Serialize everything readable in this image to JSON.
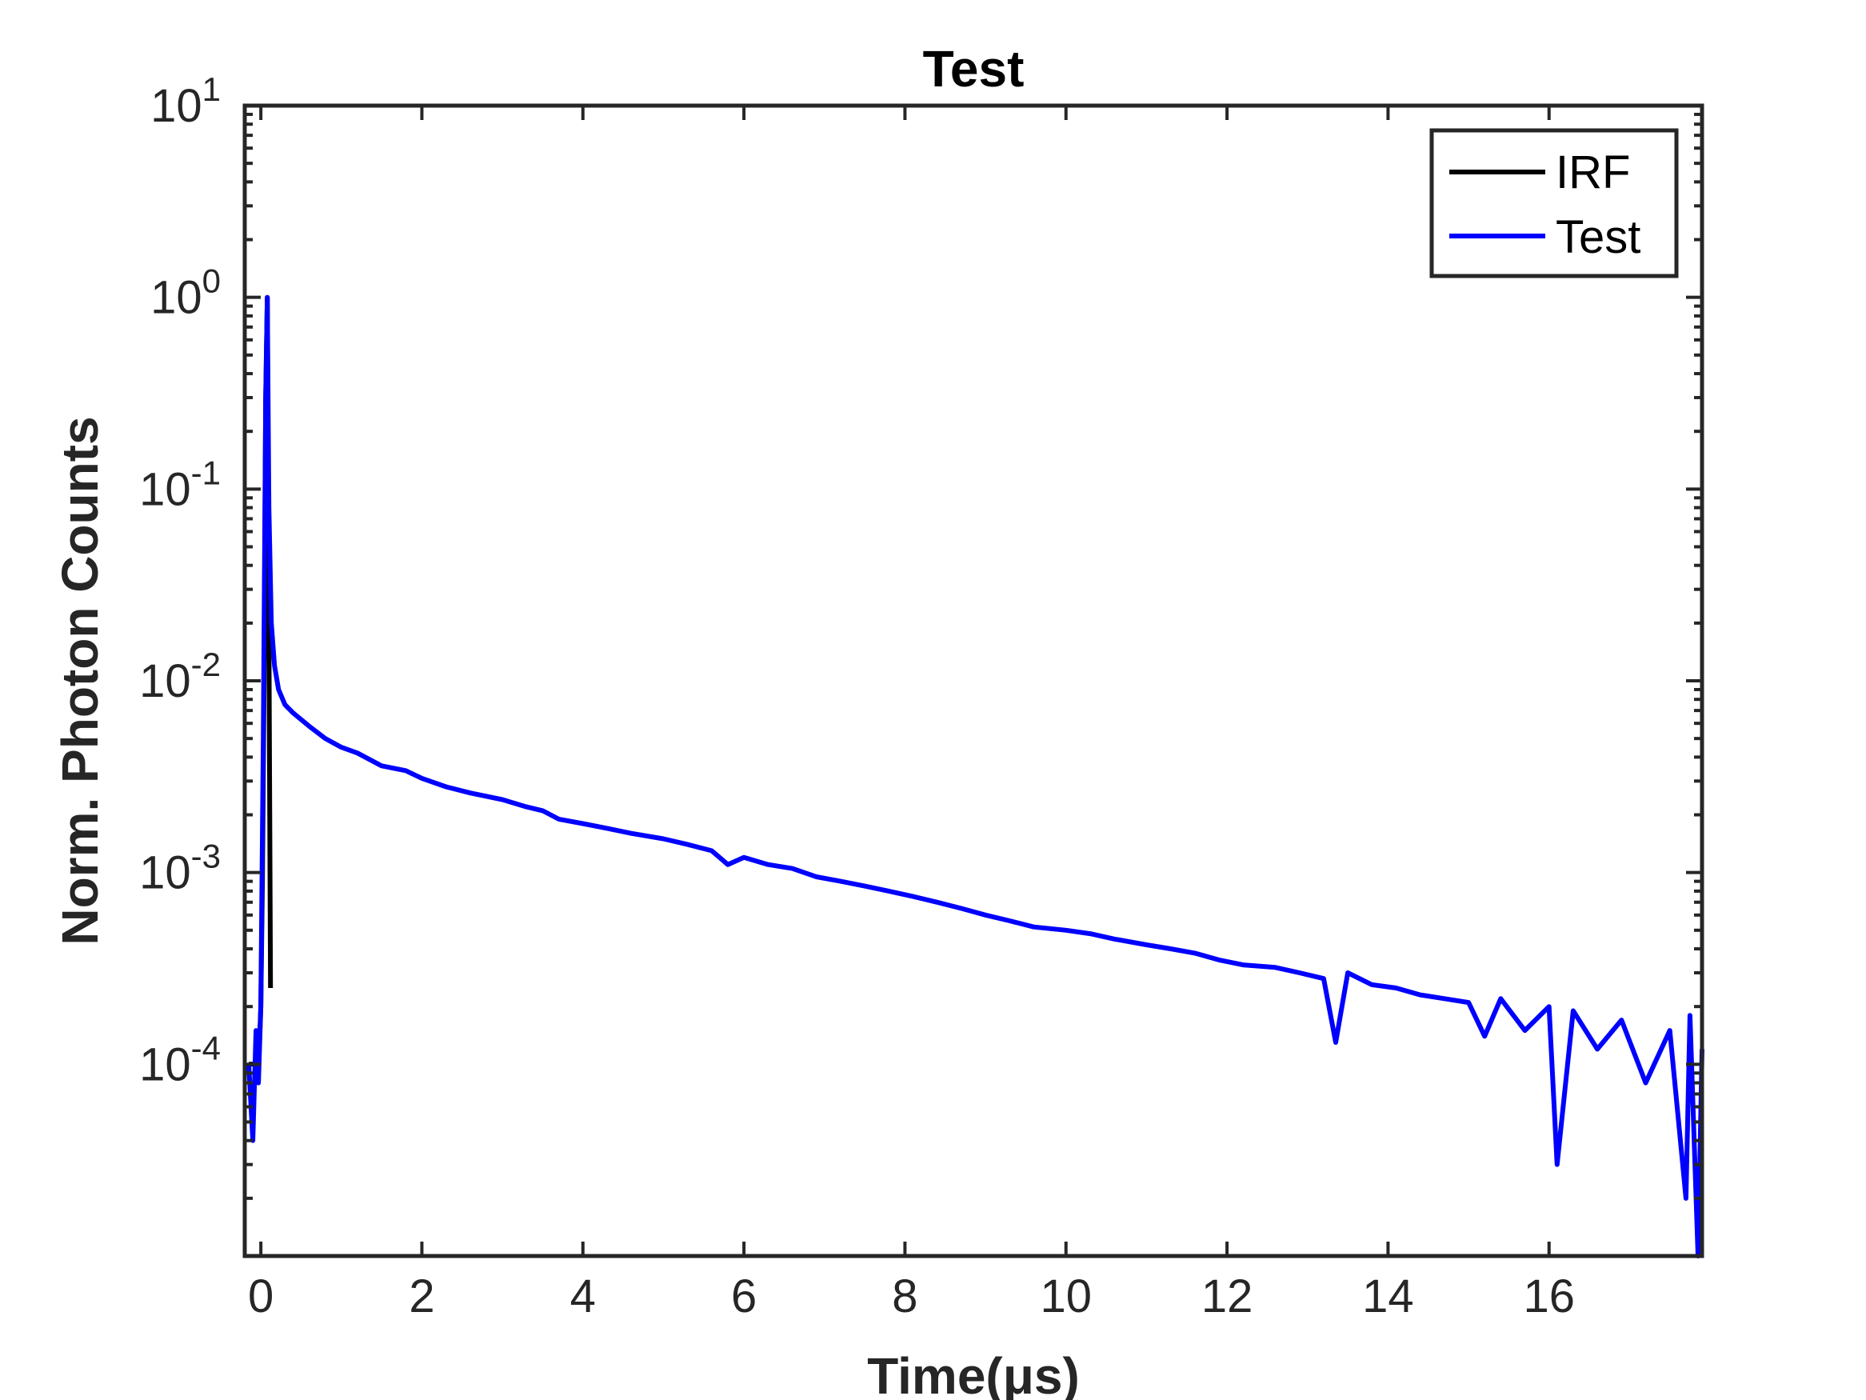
{
  "chart_data": {
    "type": "line",
    "title": "Test",
    "xlabel": "Time(μs)",
    "ylabel": "Norm. Photon Counts",
    "xlim": [
      -0.2,
      17.9
    ],
    "ylim": [
      1e-05,
      10
    ],
    "yscale": "log",
    "grid": false,
    "legend_position": "top-right",
    "x_ticks": [
      0,
      2,
      4,
      6,
      8,
      10,
      12,
      14,
      16
    ],
    "x_tick_labels": [
      "0",
      "2",
      "4",
      "6",
      "8",
      "10",
      "12",
      "14",
      "16"
    ],
    "y_ticks": [
      {
        "value": 10,
        "base": "10",
        "exp": "1"
      },
      {
        "value": 1,
        "base": "10",
        "exp": "0"
      },
      {
        "value": 0.1,
        "base": "10",
        "exp": "-1"
      },
      {
        "value": 0.01,
        "base": "10",
        "exp": "-2"
      },
      {
        "value": 0.001,
        "base": "10",
        "exp": "-3"
      },
      {
        "value": 0.0001,
        "base": "10",
        "exp": "-4"
      }
    ],
    "series": [
      {
        "name": "IRF",
        "color": "#000000",
        "x": [
          -0.15,
          -0.08,
          -0.02,
          0.0,
          0.02,
          0.04,
          0.06,
          0.08,
          0.1,
          0.12
        ],
        "y": [
          0.0001,
          0.0001,
          0.00012,
          0.0002,
          0.0009,
          0.01,
          0.3,
          1.0,
          0.02,
          0.00025
        ]
      },
      {
        "name": "Test",
        "color": "#0000ff",
        "x": [
          -0.15,
          -0.1,
          -0.06,
          -0.03,
          0.0,
          0.03,
          0.06,
          0.08,
          0.1,
          0.13,
          0.17,
          0.22,
          0.3,
          0.4,
          0.6,
          0.8,
          1.0,
          1.2,
          1.5,
          1.8,
          2.0,
          2.3,
          2.6,
          3.0,
          3.3,
          3.5,
          3.7,
          4.0,
          4.3,
          4.6,
          5.0,
          5.3,
          5.6,
          5.8,
          6.0,
          6.3,
          6.6,
          6.9,
          7.2,
          7.5,
          7.8,
          8.1,
          8.4,
          8.7,
          9.0,
          9.3,
          9.6,
          10.0,
          10.3,
          10.6,
          11.0,
          11.3,
          11.6,
          11.9,
          12.2,
          12.6,
          12.9,
          13.2,
          13.35,
          13.5,
          13.8,
          14.1,
          14.4,
          14.7,
          15.0,
          15.2,
          15.4,
          15.7,
          16.0,
          16.1,
          16.3,
          16.6,
          16.9,
          17.2,
          17.5,
          17.7,
          17.75,
          17.85,
          17.9
        ],
        "y": [
          0.0001,
          4e-05,
          0.00015,
          8e-05,
          0.0002,
          0.005,
          0.3,
          1.0,
          0.08,
          0.02,
          0.012,
          0.009,
          0.0075,
          0.0068,
          0.0058,
          0.005,
          0.0045,
          0.0042,
          0.0036,
          0.0034,
          0.0031,
          0.0028,
          0.0026,
          0.0024,
          0.0022,
          0.0021,
          0.0019,
          0.0018,
          0.0017,
          0.0016,
          0.0015,
          0.0014,
          0.0013,
          0.0011,
          0.0012,
          0.0011,
          0.00105,
          0.00095,
          0.0009,
          0.00085,
          0.0008,
          0.00075,
          0.0007,
          0.00065,
          0.0006,
          0.00056,
          0.00052,
          0.0005,
          0.00048,
          0.00045,
          0.00042,
          0.0004,
          0.00038,
          0.00035,
          0.00033,
          0.00032,
          0.0003,
          0.00028,
          0.00013,
          0.0003,
          0.00026,
          0.00025,
          0.00023,
          0.00022,
          0.00021,
          0.00014,
          0.00022,
          0.00015,
          0.0002,
          3e-05,
          0.00019,
          0.00012,
          0.00017,
          8e-05,
          0.00015,
          2e-05,
          0.00018,
          5e-06,
          0.00012
        ]
      }
    ]
  }
}
